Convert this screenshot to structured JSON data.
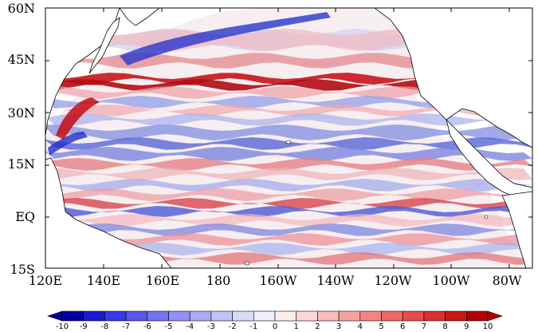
{
  "map": {
    "lat_labels": [
      "60N",
      "45N",
      "30N",
      "15N",
      "EQ",
      "15S"
    ],
    "lon_labels": [
      "120E",
      "140E",
      "160E",
      "180",
      "160W",
      "140W",
      "120W",
      "100W",
      "80W"
    ]
  },
  "colorbar": {
    "labels": [
      "-10",
      "-9",
      "-8",
      "-7",
      "-6",
      "-5",
      "-4",
      "-3",
      "-2",
      "-1",
      "0",
      "1",
      "2",
      "3",
      "4",
      "5",
      "6",
      "7",
      "8",
      "9",
      "10"
    ],
    "colors": [
      "#0000a5",
      "#1a1ad0",
      "#3838e6",
      "#5656ee",
      "#7373f3",
      "#9090f6",
      "#aaaaf8",
      "#c3c3fa",
      "#dadafc",
      "#eeeefe",
      "#ffecec",
      "#ffd6d6",
      "#fcbcbc",
      "#f8a0a0",
      "#f48484",
      "#ee6868",
      "#e64c4c",
      "#dc3030",
      "#cc1818",
      "#b20000"
    ],
    "under_color": "#0000a5",
    "over_color": "#b20000"
  }
}
